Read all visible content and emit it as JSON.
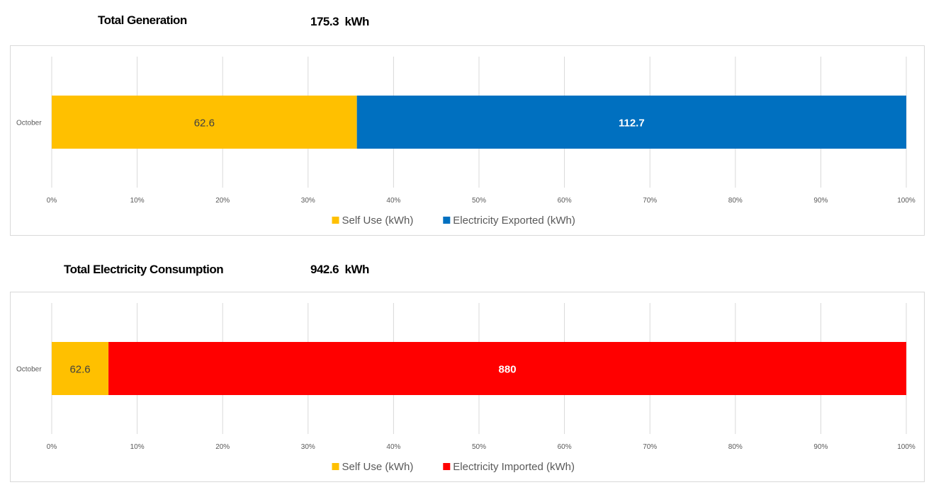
{
  "chart_data": [
    {
      "type": "bar",
      "orientation": "horizontal",
      "stacking": "percent",
      "title": "Total Generation",
      "total_value": "175.3",
      "total_unit": "kWh",
      "categories": [
        "October"
      ],
      "series": [
        {
          "name": "Self Use (kWh)",
          "values": [
            62.6
          ],
          "color": "#FFC000",
          "label_color": "#404040"
        },
        {
          "name": "Electricity Exported (kWh)",
          "values": [
            112.7
          ],
          "color": "#0070C0",
          "label_color": "#FFFFFF"
        }
      ],
      "x_ticks": [
        "0%",
        "10%",
        "20%",
        "30%",
        "40%",
        "50%",
        "60%",
        "70%",
        "80%",
        "90%",
        "100%"
      ],
      "xlim": [
        0,
        100
      ],
      "grid": true,
      "legend_position": "bottom"
    },
    {
      "type": "bar",
      "orientation": "horizontal",
      "stacking": "percent",
      "title": "Total Electricity Consumption",
      "total_value": "942.6",
      "total_unit": "kWh",
      "categories": [
        "October"
      ],
      "series": [
        {
          "name": "Self Use (kWh)",
          "values": [
            62.6
          ],
          "color": "#FFC000",
          "label_color": "#404040"
        },
        {
          "name": "Electricity Imported (kWh)",
          "values": [
            880
          ],
          "color": "#FF0000",
          "label_color": "#FFFFFF"
        }
      ],
      "x_ticks": [
        "0%",
        "10%",
        "20%",
        "30%",
        "40%",
        "50%",
        "60%",
        "70%",
        "80%",
        "90%",
        "100%"
      ],
      "xlim": [
        0,
        100
      ],
      "grid": true,
      "legend_position": "bottom"
    }
  ]
}
